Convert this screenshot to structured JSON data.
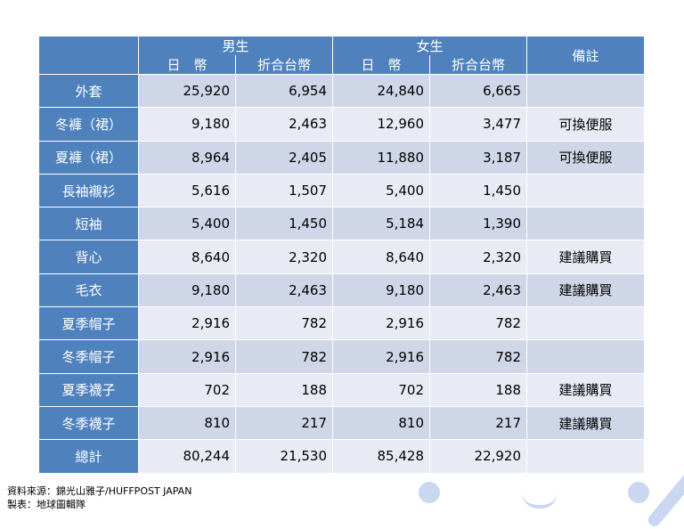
{
  "table": {
    "groups": [
      {
        "label": "男生",
        "sub": [
          "日　幣",
          "折合台幣"
        ]
      },
      {
        "label": "女生",
        "sub": [
          "日　幣",
          "折合台幣"
        ]
      }
    ],
    "note_header": "備註",
    "rows": [
      {
        "item": "外套",
        "male_jpy": "25,920",
        "male_twd": "6,954",
        "female_jpy": "24,840",
        "female_twd": "6,665",
        "note": ""
      },
      {
        "item": "冬褲（裙）",
        "male_jpy": "9,180",
        "male_twd": "2,463",
        "female_jpy": "12,960",
        "female_twd": "3,477",
        "note": "可換便服"
      },
      {
        "item": "夏褲（裙）",
        "male_jpy": "8,964",
        "male_twd": "2,405",
        "female_jpy": "11,880",
        "female_twd": "3,187",
        "note": "可換便服"
      },
      {
        "item": "長袖襯衫",
        "male_jpy": "5,616",
        "male_twd": "1,507",
        "female_jpy": "5,400",
        "female_twd": "1,450",
        "note": ""
      },
      {
        "item": "短袖",
        "male_jpy": "5,400",
        "male_twd": "1,450",
        "female_jpy": "5,184",
        "female_twd": "1,390",
        "note": ""
      },
      {
        "item": "背心",
        "male_jpy": "8,640",
        "male_twd": "2,320",
        "female_jpy": "8,640",
        "female_twd": "2,320",
        "note": "建議購買"
      },
      {
        "item": "毛衣",
        "male_jpy": "9,180",
        "male_twd": "2,463",
        "female_jpy": "9,180",
        "female_twd": "2,463",
        "note": "建議購買"
      },
      {
        "item": "夏季帽子",
        "male_jpy": "2,916",
        "male_twd": "782",
        "female_jpy": "2,916",
        "female_twd": "782",
        "note": ""
      },
      {
        "item": "冬季帽子",
        "male_jpy": "2,916",
        "male_twd": "782",
        "female_jpy": "2,916",
        "female_twd": "782",
        "note": ""
      },
      {
        "item": "夏季襪子",
        "male_jpy": "702",
        "male_twd": "188",
        "female_jpy": "702",
        "female_twd": "188",
        "note": "建議購買"
      },
      {
        "item": "冬季襪子",
        "male_jpy": "810",
        "male_twd": "217",
        "female_jpy": "810",
        "female_twd": "217",
        "note": "建議購買"
      },
      {
        "item": "總計",
        "male_jpy": "80,244",
        "male_twd": "21,530",
        "female_jpy": "85,428",
        "female_twd": "22,920",
        "note": ""
      }
    ]
  },
  "footer": {
    "source": "資料來源：錦光山雅子/HUFFPOST JAPAN",
    "credit": "製表：地球圖輯隊"
  },
  "colors": {
    "header": "#4f81bd",
    "row_dark": "#cfd6e8",
    "row_light": "#e8ebf4",
    "decoration": "#c9d7f0"
  }
}
